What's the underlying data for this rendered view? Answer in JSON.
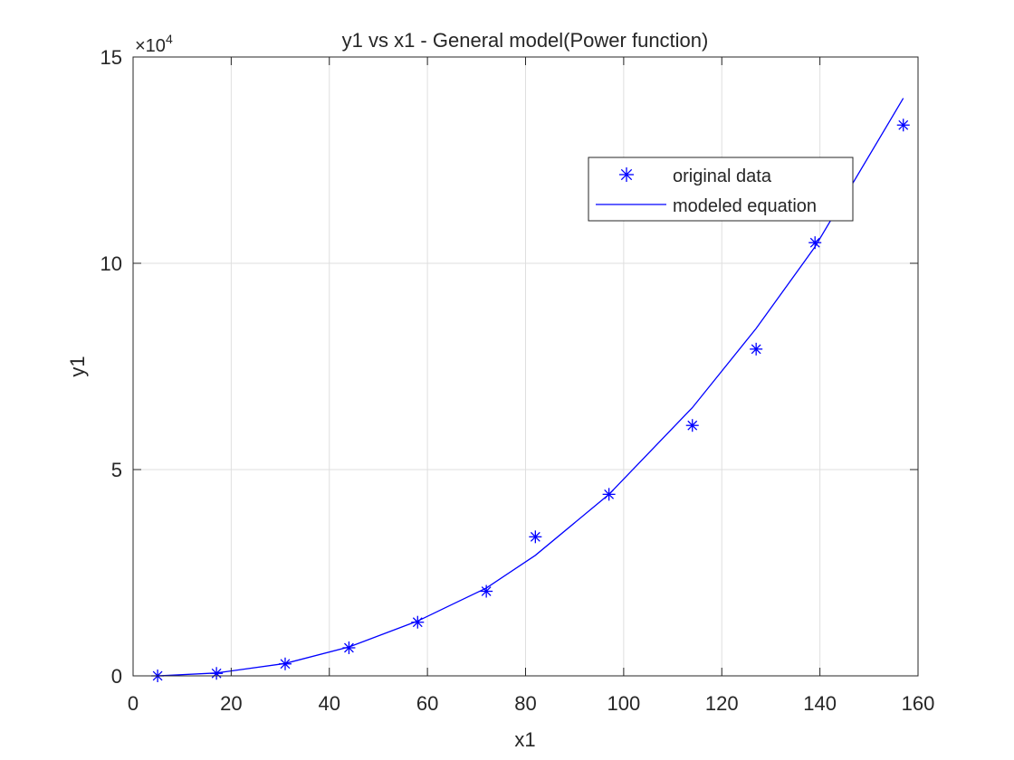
{
  "chart_data": {
    "type": "scatter",
    "title": "y1 vs x1 - General model(Power function)",
    "xlabel": "x1",
    "ylabel": "y1",
    "xlim": [
      0,
      160
    ],
    "ylim": [
      0,
      150000
    ],
    "y_exponent_label": "×10",
    "y_exponent_power": "4",
    "x_ticks": [
      0,
      20,
      40,
      60,
      80,
      100,
      120,
      140,
      160
    ],
    "x_tick_labels": [
      "0",
      "20",
      "40",
      "60",
      "80",
      "100",
      "120",
      "140",
      "160"
    ],
    "y_ticks": [
      0,
      50000,
      100000,
      150000
    ],
    "y_tick_labels": [
      "0",
      "5",
      "10",
      "15"
    ],
    "grid": true,
    "legend_position": "top-right",
    "series": [
      {
        "name": "original data",
        "kind": "markers",
        "marker": "asterisk",
        "color": "#0000ff",
        "x": [
          5,
          17,
          31,
          44,
          58,
          72,
          82,
          97,
          114,
          127,
          139,
          157
        ],
        "y": [
          0,
          600,
          2900,
          6800,
          13000,
          20500,
          33700,
          44000,
          60700,
          79200,
          105000,
          133500
        ]
      },
      {
        "name": "modeled equation",
        "kind": "line",
        "color": "#0000ff",
        "x": [
          5,
          17,
          31,
          44,
          58,
          72,
          82,
          97,
          114,
          127,
          139,
          157
        ],
        "y": [
          0,
          700,
          3000,
          7000,
          13300,
          21300,
          29200,
          44000,
          65000,
          84200,
          104000,
          140000
        ]
      }
    ]
  }
}
